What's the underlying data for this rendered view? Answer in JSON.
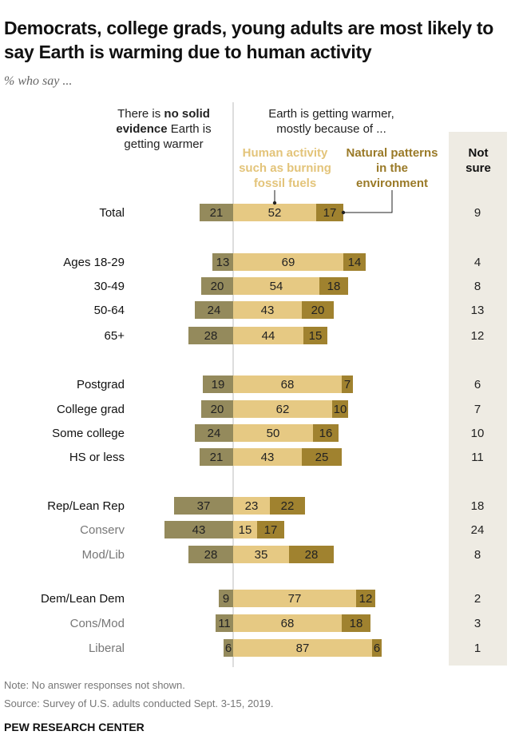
{
  "title": "Democrats, college grads, young adults are most likely to say Earth is warming due to human activity",
  "subtitle": "% who say ...",
  "headers": {
    "no_evidence_pre": "There is ",
    "no_evidence_bold": "no solid evidence",
    "no_evidence_post": " Earth is getting warmer",
    "warmer": "Earth is getting warmer, mostly because of ...",
    "human": "Human activity such as burning fossil fuels",
    "natural": "Natural patterns in the environment",
    "not_sure": "Not sure"
  },
  "colors": {
    "no_evidence": "#948a5c",
    "human": "#e6c983",
    "natural": "#a0822f",
    "not_sure_bg": "#eeebe3",
    "human_label": "#e3c47a",
    "natural_label": "#9a7a28"
  },
  "chart_data": {
    "type": "bar",
    "orientation": "horizontal diverging stacked",
    "categories": [
      "Total",
      "Ages 18-29",
      "30-49",
      "50-64",
      "65+",
      "Postgrad",
      "College grad",
      "Some college",
      "HS or less",
      "Rep/Lean Rep",
      "Conserv",
      "Mod/Lib",
      "Dem/Lean Dem",
      "Cons/Mod",
      "Liberal"
    ],
    "subgroup": [
      false,
      false,
      false,
      false,
      false,
      false,
      false,
      false,
      false,
      false,
      true,
      true,
      false,
      true,
      true
    ],
    "series": [
      {
        "name": "There is no solid evidence Earth is getting warmer",
        "values": [
          21,
          13,
          20,
          24,
          28,
          19,
          20,
          24,
          21,
          37,
          43,
          28,
          9,
          11,
          6
        ]
      },
      {
        "name": "Human activity such as burning fossil fuels",
        "values": [
          52,
          69,
          54,
          43,
          44,
          68,
          62,
          50,
          43,
          23,
          15,
          35,
          77,
          68,
          87
        ]
      },
      {
        "name": "Natural patterns in the environment",
        "values": [
          17,
          14,
          18,
          20,
          15,
          7,
          10,
          16,
          25,
          22,
          17,
          28,
          12,
          18,
          6
        ]
      },
      {
        "name": "Not sure",
        "values": [
          9,
          4,
          8,
          13,
          12,
          6,
          7,
          10,
          11,
          18,
          24,
          8,
          2,
          3,
          1
        ]
      }
    ]
  },
  "footer": {
    "note": "Note: No answer responses not shown.",
    "source": "Source: Survey of U.S. adults conducted Sept. 3-15, 2019.",
    "brand": "PEW RESEARCH CENTER"
  }
}
